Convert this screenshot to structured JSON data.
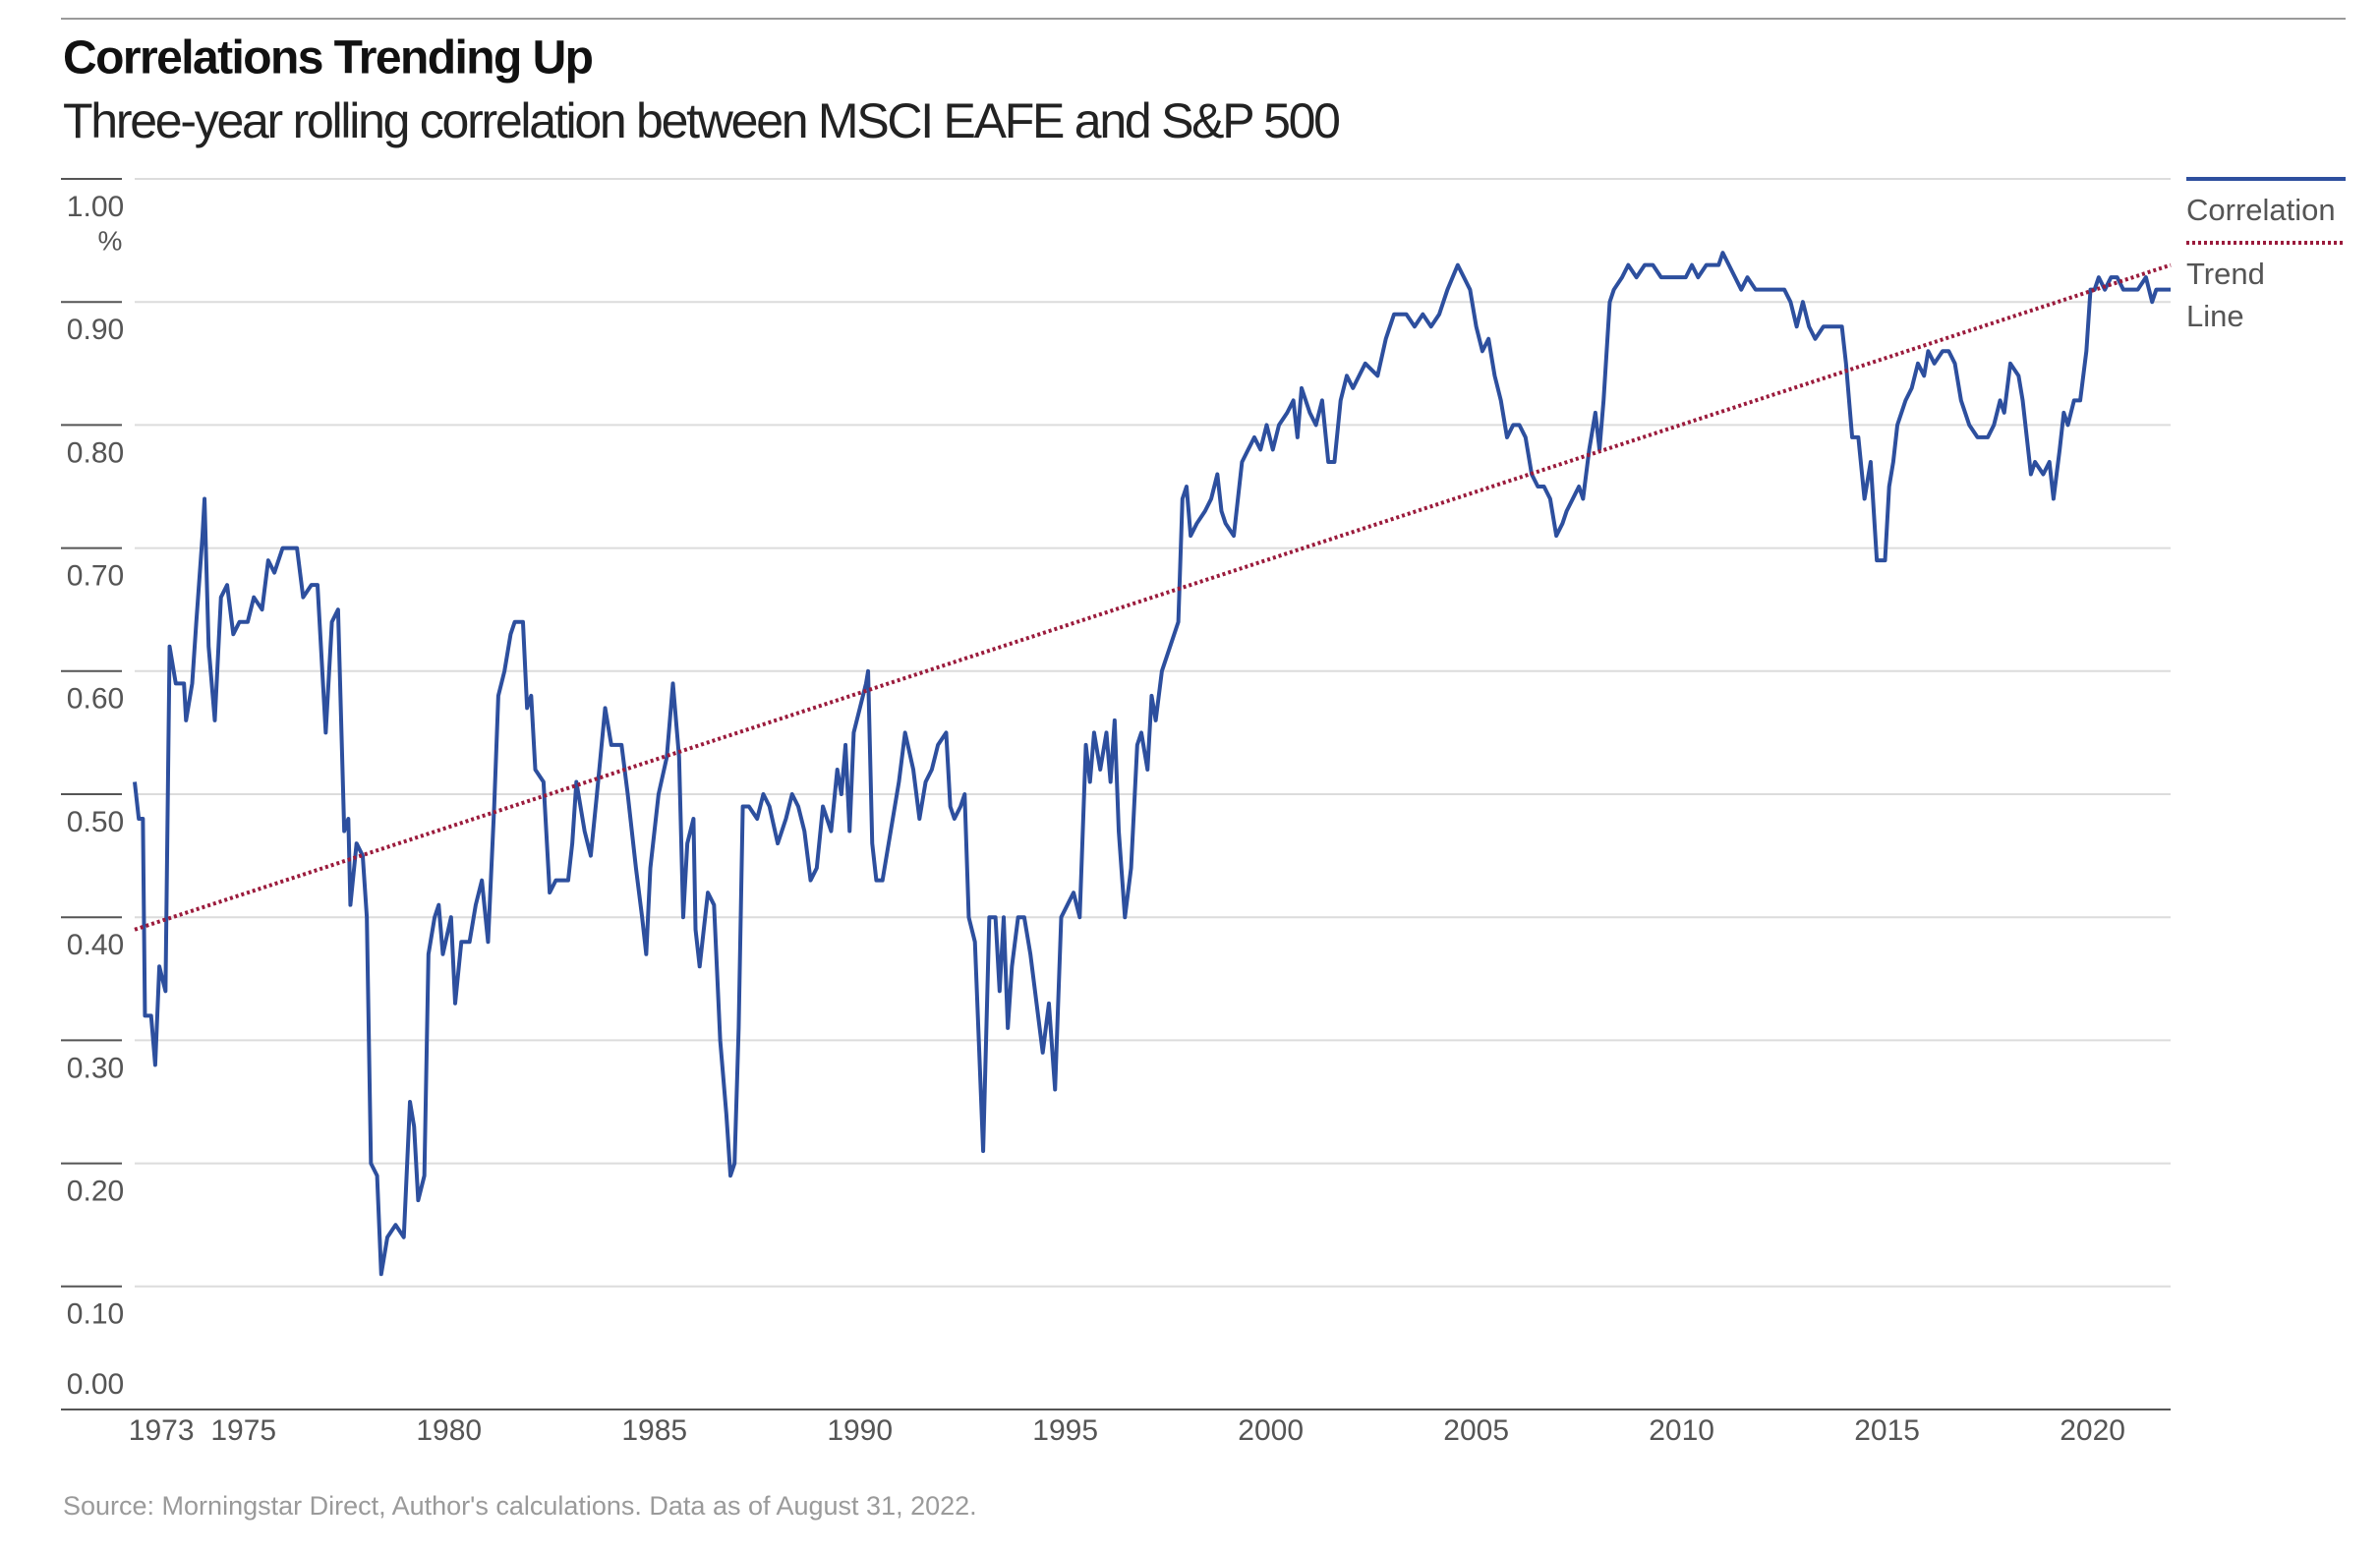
{
  "chart_data": {
    "type": "line",
    "title": "Correlations Trending Up",
    "subtitle": "Three-year rolling correlation between MSCI EAFE and S&P 500",
    "y_unit": "%",
    "source": "Source: Morningstar Direct, Author's calculations. Data as of August 31, 2022.",
    "xlim": [
      1972.35,
      2021.9
    ],
    "xticks": [
      1973,
      1975,
      1980,
      1985,
      1990,
      1995,
      2000,
      2005,
      2010,
      2015,
      2020
    ],
    "ylim": [
      0,
      1
    ],
    "yticks": [
      {
        "value": 0,
        "label": "0.00"
      },
      {
        "value": 0.1,
        "label": "0.10"
      },
      {
        "value": 0.2,
        "label": "0.20"
      },
      {
        "value": 0.3,
        "label": "0.30"
      },
      {
        "value": 0.4,
        "label": "0.40"
      },
      {
        "value": 0.5,
        "label": "0.50"
      },
      {
        "value": 0.6,
        "label": "0.60"
      },
      {
        "value": 0.7,
        "label": "0.70"
      },
      {
        "value": 0.8,
        "label": "0.80"
      },
      {
        "value": 0.9,
        "label": "0.90"
      },
      {
        "value": 1,
        "label": "1.00"
      }
    ],
    "grid": true,
    "legend_position": "right",
    "series": [
      {
        "name": "Correlation",
        "color": "#2d4f9e",
        "style": "solid",
        "x": [
          1972.35,
          1972.45,
          1972.55,
          1972.6,
          1972.75,
          1972.85,
          1972.95,
          1973.1,
          1973.2,
          1973.35,
          1973.55,
          1973.6,
          1973.75,
          1973.85,
          1974,
          1974.05,
          1974.15,
          1974.3,
          1974.45,
          1974.6,
          1974.75,
          1974.9,
          1975.1,
          1975.25,
          1975.45,
          1975.6,
          1975.75,
          1975.95,
          1976.3,
          1976.45,
          1976.65,
          1976.8,
          1977,
          1977.15,
          1977.3,
          1977.45,
          1977.55,
          1977.6,
          1977.75,
          1977.9,
          1978,
          1978.1,
          1978.25,
          1978.35,
          1978.5,
          1978.7,
          1978.9,
          1979.05,
          1979.15,
          1979.25,
          1979.4,
          1979.5,
          1979.65,
          1979.75,
          1979.85,
          1980.05,
          1980.15,
          1980.3,
          1980.5,
          1980.65,
          1980.8,
          1980.95,
          1981.1,
          1981.2,
          1981.35,
          1981.5,
          1981.6,
          1981.8,
          1981.9,
          1982,
          1982.1,
          1982.3,
          1982.45,
          1982.6,
          1982.8,
          1982.9,
          1983,
          1983.1,
          1983.3,
          1983.45,
          1983.6,
          1983.8,
          1983.95,
          1984.2,
          1984.35,
          1984.55,
          1984.7,
          1984.8,
          1984.9,
          1985.1,
          1985.3,
          1985.45,
          1985.6,
          1985.7,
          1985.8,
          1985.95,
          1986,
          1986.1,
          1986.3,
          1986.45,
          1986.6,
          1986.75,
          1986.85,
          1986.95,
          1987.05,
          1987.15,
          1987.3,
          1987.5,
          1987.65,
          1987.8,
          1988,
          1988.2,
          1988.35,
          1988.5,
          1988.65,
          1988.8,
          1988.95,
          1989.1,
          1989.3,
          1989.45,
          1989.55,
          1989.65,
          1989.75,
          1989.85,
          1990,
          1990.15,
          1990.2,
          1990.3,
          1990.4,
          1990.55,
          1990.75,
          1990.95,
          1991.1,
          1991.3,
          1991.45,
          1991.6,
          1991.75,
          1991.9,
          1992.1,
          1992.2,
          1992.3,
          1992.45,
          1992.55,
          1992.65,
          1992.8,
          1993,
          1993.15,
          1993.3,
          1993.4,
          1993.5,
          1993.6,
          1993.7,
          1993.85,
          1994,
          1994.15,
          1994.3,
          1994.45,
          1994.6,
          1994.75,
          1994.9,
          1995.05,
          1995.2,
          1995.35,
          1995.5,
          1995.6,
          1995.7,
          1995.85,
          1996,
          1996.1,
          1996.2,
          1996.3,
          1996.45,
          1996.6,
          1996.75,
          1996.85,
          1997,
          1997.1,
          1997.2,
          1997.35,
          1997.55,
          1997.75,
          1997.85,
          1997.95,
          1998.05,
          1998.2,
          1998.4,
          1998.55,
          1998.7,
          1998.8,
          1998.9,
          1999.1,
          1999.3,
          1999.45,
          1999.6,
          1999.75,
          1999.9,
          2000.05,
          2000.2,
          2000.4,
          2000.55,
          2000.65,
          2000.75,
          2000.95,
          2001.1,
          2001.25,
          2001.4,
          2001.55,
          2001.7,
          2001.85,
          2002,
          2002.3,
          2002.6,
          2002.8,
          2003,
          2003.3,
          2003.5,
          2003.7,
          2003.9,
          2004.1,
          2004.3,
          2004.55,
          2004.7,
          2004.85,
          2005,
          2005.15,
          2005.3,
          2005.45,
          2005.6,
          2005.75,
          2005.9,
          2006.05,
          2006.2,
          2006.35,
          2006.5,
          2006.65,
          2006.8,
          2006.95,
          2007.1,
          2007.2,
          2007.35,
          2007.5,
          2007.6,
          2007.75,
          2007.9,
          2008,
          2008.1,
          2008.25,
          2008.35,
          2008.55,
          2008.7,
          2008.9,
          2009.1,
          2009.3,
          2009.5,
          2009.9,
          2010.1,
          2010.25,
          2010.4,
          2010.6,
          2010.9,
          2011,
          2011.15,
          2011.3,
          2011.45,
          2011.6,
          2011.8,
          2012,
          2012.3,
          2012.5,
          2012.65,
          2012.8,
          2012.95,
          2013.1,
          2013.25,
          2013.45,
          2013.7,
          2013.9,
          2014,
          2014.15,
          2014.3,
          2014.45,
          2014.6,
          2014.75,
          2014.95,
          2015.05,
          2015.15,
          2015.25,
          2015.45,
          2015.6,
          2015.75,
          2015.9,
          2016,
          2016.15,
          2016.35,
          2016.5,
          2016.65,
          2016.8,
          2017,
          2017.2,
          2017.45,
          2017.6,
          2017.75,
          2017.85,
          2018,
          2018.2,
          2018.3,
          2018.4,
          2018.5,
          2018.6,
          2018.8,
          2018.95,
          2019.05,
          2019.2,
          2019.3,
          2019.4,
          2019.55,
          2019.7,
          2019.85,
          2019.95,
          2020.05,
          2020.15,
          2020.3,
          2020.45,
          2020.6,
          2020.75,
          2020.9,
          2021.1,
          2021.3,
          2021.45,
          2021.55,
          2021.9
        ],
        "values": [
          0.51,
          0.48,
          0.48,
          0.32,
          0.32,
          0.28,
          0.36,
          0.34,
          0.62,
          0.59,
          0.59,
          0.56,
          0.59,
          0.64,
          0.71,
          0.74,
          0.62,
          0.56,
          0.66,
          0.67,
          0.63,
          0.64,
          0.64,
          0.66,
          0.65,
          0.69,
          0.68,
          0.7,
          0.7,
          0.66,
          0.67,
          0.67,
          0.55,
          0.64,
          0.65,
          0.47,
          0.48,
          0.41,
          0.46,
          0.45,
          0.4,
          0.2,
          0.19,
          0.11,
          0.14,
          0.15,
          0.14,
          0.25,
          0.23,
          0.17,
          0.19,
          0.37,
          0.4,
          0.41,
          0.37,
          0.4,
          0.33,
          0.38,
          0.38,
          0.41,
          0.43,
          0.38,
          0.49,
          0.58,
          0.6,
          0.63,
          0.64,
          0.64,
          0.57,
          0.58,
          0.52,
          0.51,
          0.42,
          0.43,
          0.43,
          0.43,
          0.46,
          0.51,
          0.47,
          0.45,
          0.5,
          0.57,
          0.54,
          0.54,
          0.5,
          0.44,
          0.4,
          0.37,
          0.44,
          0.5,
          0.53,
          0.59,
          0.53,
          0.4,
          0.46,
          0.48,
          0.39,
          0.36,
          0.42,
          0.41,
          0.3,
          0.24,
          0.19,
          0.2,
          0.31,
          0.49,
          0.49,
          0.48,
          0.5,
          0.49,
          0.46,
          0.48,
          0.5,
          0.49,
          0.47,
          0.43,
          0.44,
          0.49,
          0.47,
          0.52,
          0.5,
          0.54,
          0.47,
          0.55,
          0.57,
          0.59,
          0.6,
          0.46,
          0.43,
          0.43,
          0.47,
          0.51,
          0.55,
          0.52,
          0.48,
          0.51,
          0.52,
          0.54,
          0.55,
          0.49,
          0.48,
          0.49,
          0.5,
          0.4,
          0.38,
          0.21,
          0.4,
          0.4,
          0.34,
          0.4,
          0.31,
          0.36,
          0.4,
          0.4,
          0.37,
          0.33,
          0.29,
          0.33,
          0.26,
          0.4,
          0.41,
          0.42,
          0.4,
          0.54,
          0.51,
          0.55,
          0.52,
          0.55,
          0.51,
          0.56,
          0.47,
          0.4,
          0.44,
          0.54,
          0.55,
          0.52,
          0.58,
          0.56,
          0.6,
          0.62,
          0.64,
          0.74,
          0.75,
          0.71,
          0.72,
          0.73,
          0.74,
          0.76,
          0.73,
          0.72,
          0.71,
          0.77,
          0.78,
          0.79,
          0.78,
          0.8,
          0.78,
          0.8,
          0.81,
          0.82,
          0.79,
          0.83,
          0.81,
          0.8,
          0.82,
          0.77,
          0.77,
          0.82,
          0.84,
          0.83,
          0.85,
          0.84,
          0.87,
          0.89,
          0.89,
          0.88,
          0.89,
          0.88,
          0.89,
          0.91,
          0.93,
          0.92,
          0.91,
          0.88,
          0.86,
          0.87,
          0.84,
          0.82,
          0.79,
          0.8,
          0.8,
          0.79,
          0.76,
          0.75,
          0.75,
          0.74,
          0.71,
          0.72,
          0.73,
          0.74,
          0.75,
          0.74,
          0.78,
          0.81,
          0.78,
          0.82,
          0.9,
          0.91,
          0.92,
          0.93,
          0.92,
          0.93,
          0.93,
          0.92,
          0.92,
          0.92,
          0.93,
          0.92,
          0.93,
          0.93,
          0.94,
          0.93,
          0.92,
          0.91,
          0.92,
          0.91,
          0.91,
          0.91,
          0.91,
          0.9,
          0.88,
          0.9,
          0.88,
          0.87,
          0.88,
          0.88,
          0.88,
          0.85,
          0.79,
          0.79,
          0.74,
          0.77,
          0.69,
          0.69,
          0.75,
          0.77,
          0.8,
          0.82,
          0.83,
          0.85,
          0.84,
          0.86,
          0.85,
          0.86,
          0.86,
          0.85,
          0.82,
          0.8,
          0.79,
          0.79,
          0.8,
          0.82,
          0.81,
          0.85,
          0.84,
          0.82,
          0.79,
          0.76,
          0.77,
          0.76,
          0.77,
          0.74,
          0.78,
          0.81,
          0.8,
          0.82,
          0.82,
          0.86,
          0.91,
          0.91,
          0.92,
          0.91,
          0.92,
          0.92,
          0.91,
          0.91,
          0.91,
          0.92,
          0.9,
          0.91,
          0.91
        ]
      },
      {
        "name": "Trend Line",
        "color": "#9b1b3c",
        "style": "dotted",
        "x": [
          1972.35,
          2021.9
        ],
        "values": [
          0.39,
          0.93
        ]
      }
    ]
  }
}
